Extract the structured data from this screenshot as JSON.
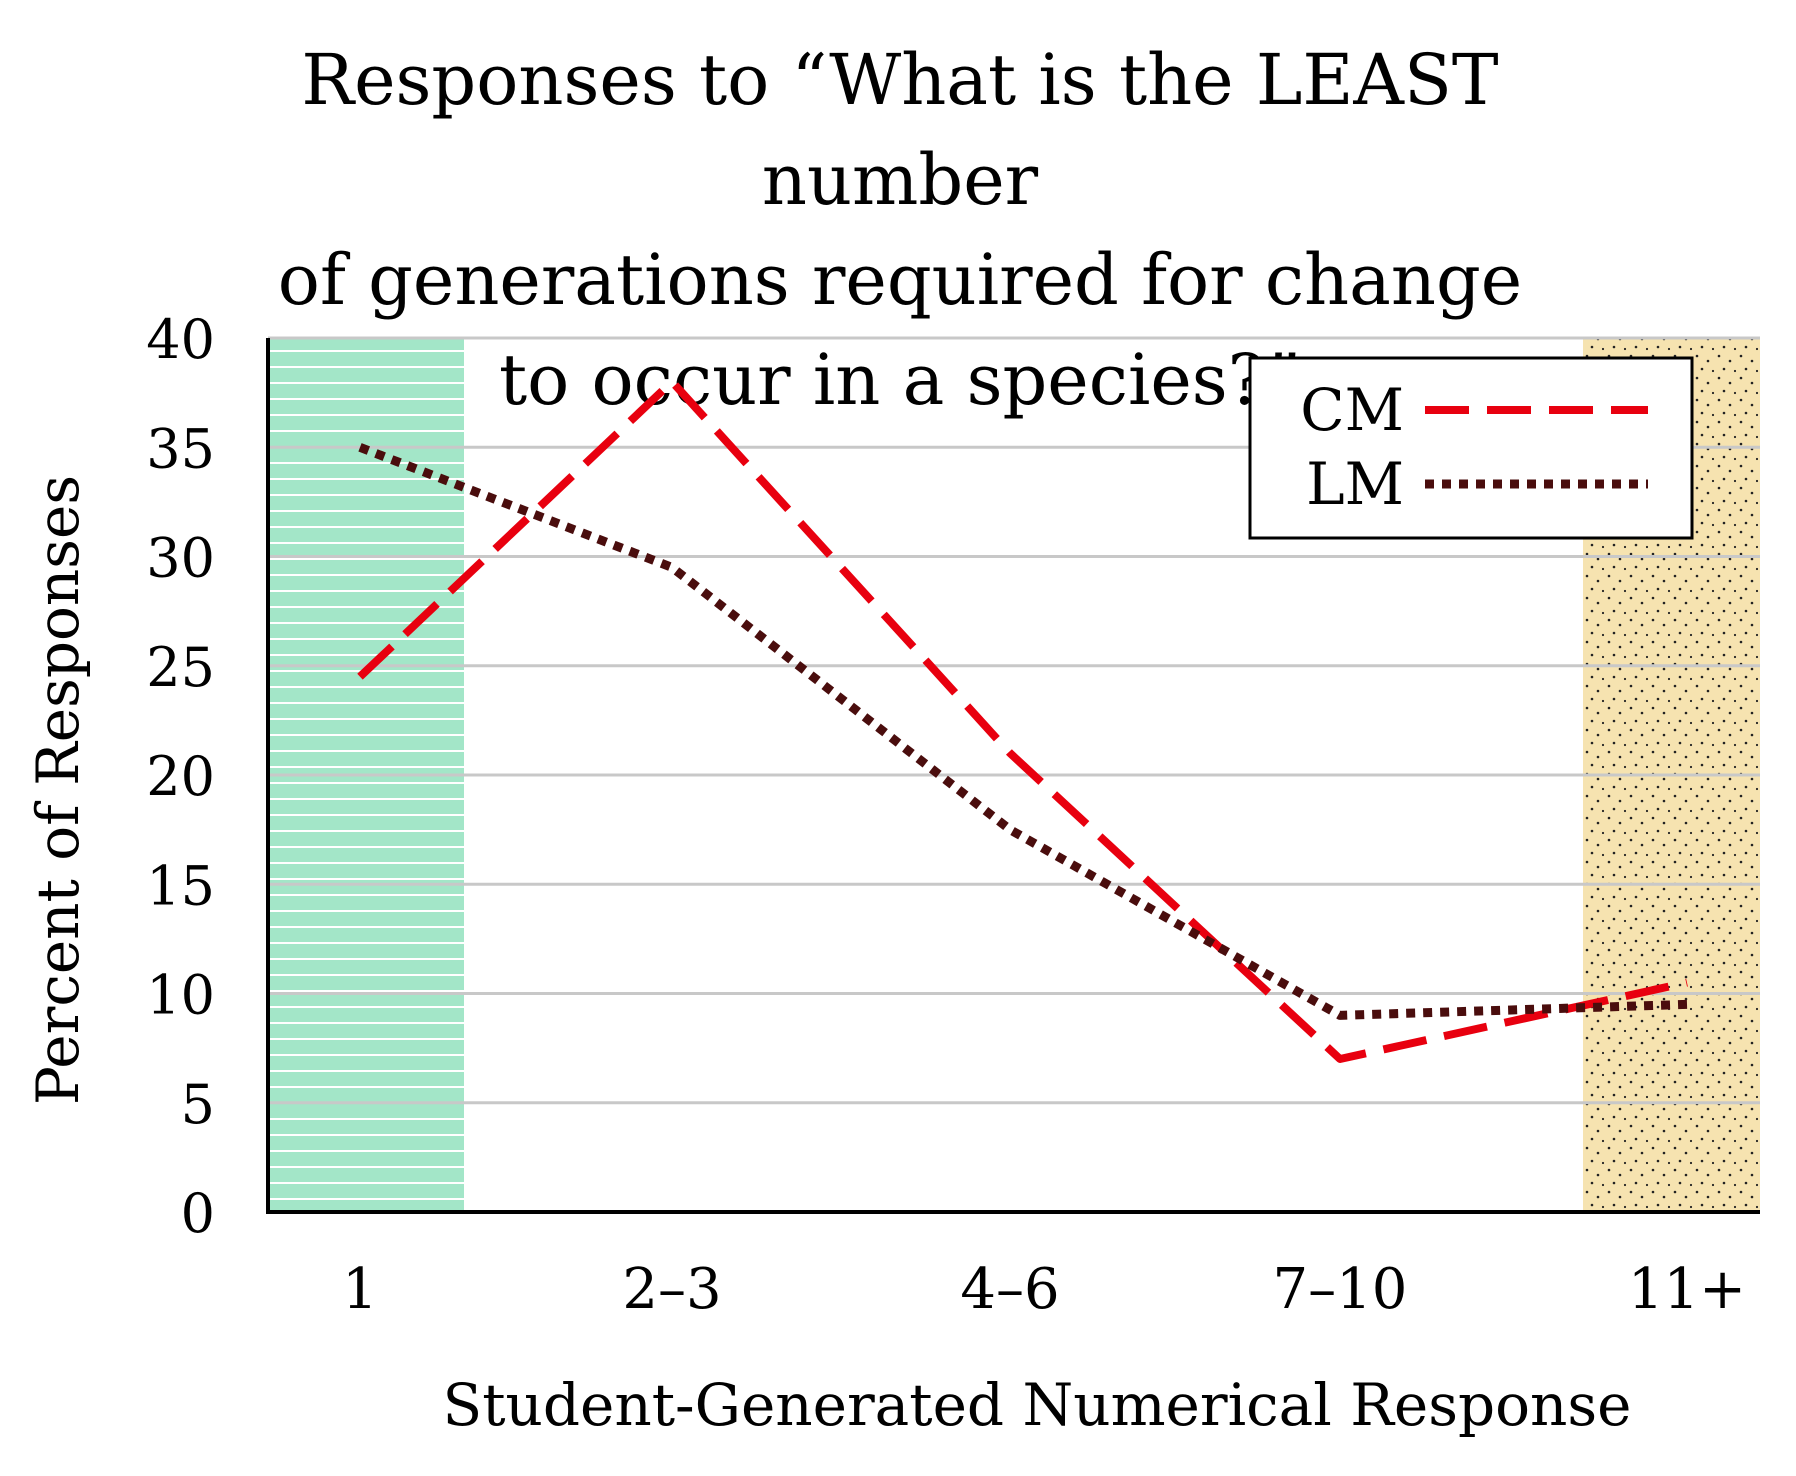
{
  "chart_data": {
    "type": "line",
    "title_lines": [
      "Responses to “What is the LEAST number",
      "of generations required for change",
      "to occur in a species?”"
    ],
    "xlabel": "Student-Generated Numerical Response",
    "ylabel": "Percent of Responses",
    "categories": [
      "1",
      "2–3",
      "4–6",
      "7–10",
      "11+"
    ],
    "ylim": [
      0,
      40
    ],
    "yticks": [
      0,
      5,
      10,
      15,
      20,
      25,
      30,
      35,
      40
    ],
    "grid": true,
    "highlight_regions": [
      {
        "category": "1",
        "color": "#a3e6c8",
        "pattern": "horizontal-stripes"
      },
      {
        "category": "11+",
        "color": "#f6e3b0",
        "pattern": "dots"
      }
    ],
    "legend_position": "top-right",
    "series": [
      {
        "name": "CM",
        "values": [
          24.5,
          38,
          21,
          7,
          10.5
        ],
        "color": "#e8000f",
        "style": "dashed"
      },
      {
        "name": "LM",
        "values": [
          35,
          29.5,
          17.5,
          9,
          9.5
        ],
        "color": "#4a0d0d",
        "style": "dotted"
      }
    ]
  }
}
